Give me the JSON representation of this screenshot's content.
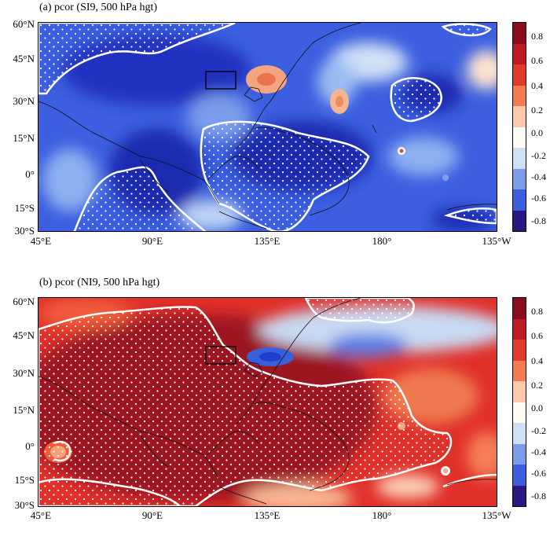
{
  "panel_a": {
    "title": "(a) pcor (SI9, 500 hPa hgt)"
  },
  "panel_b": {
    "title": "(b) pcor (NI9, 500 hPa hgt)"
  },
  "lat_labels": [
    "60°N",
    "45°N",
    "30°N",
    "15°N",
    "0°",
    "15°S",
    "30°S"
  ],
  "lon_labels": [
    "45°E",
    "90°E",
    "135°E",
    "180°",
    "135°W"
  ],
  "colorbar_labels": [
    "0.8",
    "0.6",
    "0.4",
    "0.2",
    "0.0",
    "-0.2",
    "-0.4",
    "-0.6",
    "-0.8"
  ],
  "colors": {
    "deep_red": "#8c0a1e",
    "red": "#d7191c",
    "orange": "#f4a582",
    "light": "#fddbc7",
    "light_blue": "#d1e5f0",
    "blue": "#4a72e0",
    "deep_blue": "#1f3fcf",
    "navy": "#2a1880"
  }
}
